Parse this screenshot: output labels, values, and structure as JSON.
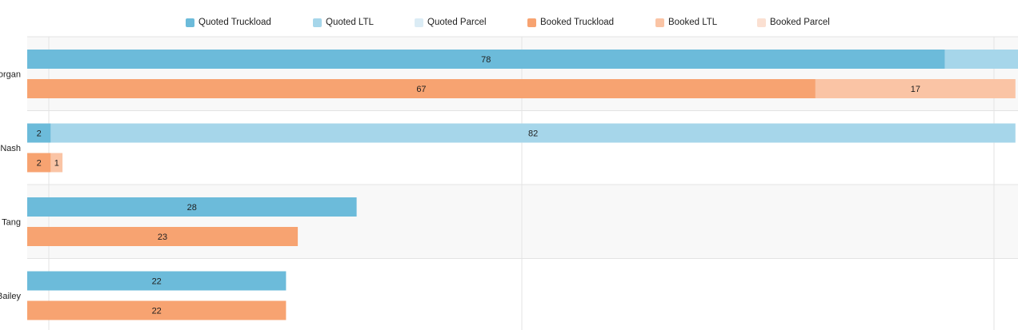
{
  "chart_data": {
    "type": "bar",
    "orientation": "horizontal",
    "stacked": true,
    "categories": [
      "organ",
      "Nash",
      "Tang",
      "Bailey"
    ],
    "groups": [
      "Quoted",
      "Booked"
    ],
    "series": [
      {
        "name": "Quoted Truckload",
        "group": "Quoted",
        "color": "#6cbbda",
        "values": [
          78,
          2,
          28,
          22
        ]
      },
      {
        "name": "Quoted LTL",
        "group": "Quoted",
        "color": "#a6d6ea",
        "values": [
          25,
          82,
          0,
          0
        ]
      },
      {
        "name": "Quoted Parcel",
        "group": "Quoted",
        "color": "#dbecf5",
        "values": [
          0,
          0,
          0,
          0
        ]
      },
      {
        "name": "Booked Truckload",
        "group": "Booked",
        "color": "#f7a371",
        "values": [
          67,
          2,
          23,
          22
        ]
      },
      {
        "name": "Booked LTL",
        "group": "Booked",
        "color": "#fac4a5",
        "values": [
          17,
          1,
          0,
          0
        ]
      },
      {
        "name": "Booked Parcel",
        "group": "Booked",
        "color": "#fbe0d2",
        "values": [
          0,
          0,
          0,
          0
        ]
      }
    ],
    "legend_position": "top",
    "grid": true,
    "title": "",
    "xlabel": "",
    "ylabel": ""
  }
}
